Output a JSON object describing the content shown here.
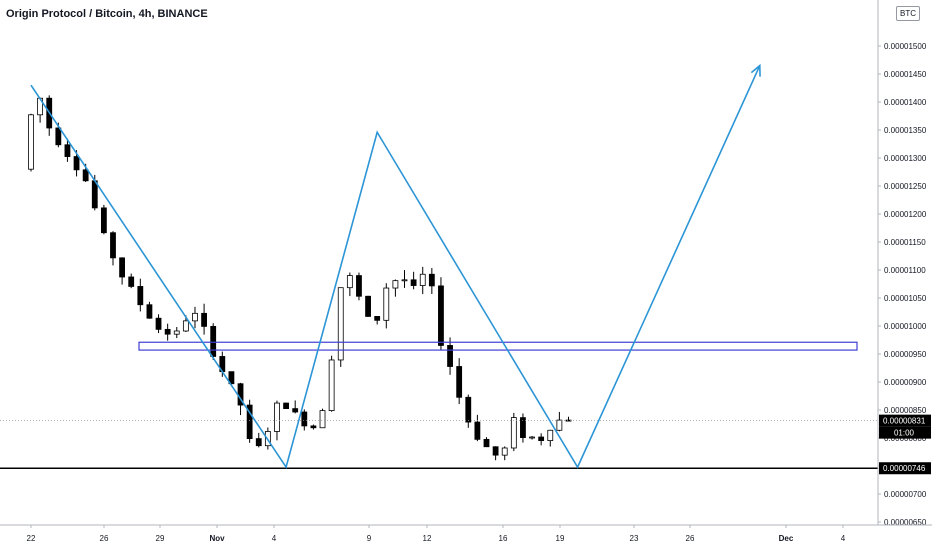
{
  "chart_data": {
    "type": "candlestick",
    "title": "Origin Protocol / Bitcoin, 4h, BINANCE",
    "currency": "BTC",
    "price_ticks": [
      "0.00001500",
      "0.00001450",
      "0.00001400",
      "0.00001350",
      "0.00001300",
      "0.00001250",
      "0.00001200",
      "0.00001150",
      "0.00001100",
      "0.00001050",
      "0.00001000",
      "0.00000950",
      "0.00000900",
      "0.00000850",
      "0.00000800",
      "0.00000750",
      "0.00000700",
      "0.00000650"
    ],
    "date_ticks": [
      "22",
      "26",
      "29",
      "Nov",
      "4",
      "9",
      "12",
      "16",
      "19",
      "23",
      "26",
      "Dec",
      "4"
    ],
    "ylim": [
      6.3e-06,
      1.575e-05
    ],
    "current_price": {
      "value": "0.00000831",
      "countdown": "01:00",
      "color": "#000000"
    },
    "support_level": {
      "value": "0.00000746",
      "color": "#000000"
    },
    "resistance_zone": {
      "from": 9.57e-06,
      "to": 9.71e-06,
      "color": "#3f3fd6"
    },
    "candle_colors": {
      "up": "#ffffff",
      "down": "#000000",
      "wick": "#000000"
    },
    "path_color": "#2b95d6",
    "zigzag": [
      {
        "date": "Oct 22",
        "price": 1.43e-05
      },
      {
        "date": "Nov 5",
        "price": 7.48e-06
      },
      {
        "date": "Nov 10",
        "price": 1.346e-05
      },
      {
        "date": "Nov 21",
        "price": 7.48e-06
      },
      {
        "date": "Dec 1",
        "price": 1.465e-05
      }
    ],
    "price_path": [
      {
        "day": 0,
        "price": 1.28e-05
      },
      {
        "day": 0.3,
        "price": 1.34e-05
      },
      {
        "day": 0.8,
        "price": 1.43e-05
      },
      {
        "day": 1.4,
        "price": 1.36e-05
      },
      {
        "day": 2.5,
        "price": 1.31e-05
      },
      {
        "day": 3.5,
        "price": 1.26e-05
      },
      {
        "day": 4.5,
        "price": 1.16e-05
      },
      {
        "day": 5.5,
        "price": 1.09e-05
      },
      {
        "day": 6.5,
        "price": 1.04e-05
      },
      {
        "day": 7.5,
        "price": 9.95e-06
      },
      {
        "day": 8.5,
        "price": 9.85e-06
      },
      {
        "day": 9.3,
        "price": 1.03e-05
      },
      {
        "day": 10.0,
        "price": 9.9e-06
      },
      {
        "day": 11.0,
        "price": 9.2e-06
      },
      {
        "day": 12.0,
        "price": 8.6e-06
      },
      {
        "day": 12.7,
        "price": 7.65e-06
      },
      {
        "day": 13.3,
        "price": 8e-06
      },
      {
        "day": 14.2,
        "price": 8.7e-06
      },
      {
        "day": 15.0,
        "price": 8.4e-06
      },
      {
        "day": 16.0,
        "price": 8.2e-06
      },
      {
        "day": 16.8,
        "price": 8.8e-06
      },
      {
        "day": 17.3,
        "price": 1.05e-05
      },
      {
        "day": 17.8,
        "price": 1.1e-05
      },
      {
        "day": 18.5,
        "price": 1.05e-05
      },
      {
        "day": 19.3,
        "price": 9.9e-06
      },
      {
        "day": 20.0,
        "price": 1.07e-05
      },
      {
        "day": 20.8,
        "price": 1.09e-05
      },
      {
        "day": 21.6,
        "price": 1.06e-05
      },
      {
        "day": 22.3,
        "price": 1.11e-05
      },
      {
        "day": 22.8,
        "price": 9.9e-06
      },
      {
        "day": 23.5,
        "price": 9.3e-06
      },
      {
        "day": 24.3,
        "price": 8.4e-06
      },
      {
        "day": 25.3,
        "price": 7.9e-06
      },
      {
        "day": 26.3,
        "price": 7.6e-06
      },
      {
        "day": 27.0,
        "price": 8.3e-06
      },
      {
        "day": 27.7,
        "price": 8e-06
      },
      {
        "day": 28.5,
        "price": 8e-06
      },
      {
        "day": 29.2,
        "price": 8.3e-06
      },
      {
        "day": 29.4,
        "price": 9e-06
      },
      {
        "day": 29.5,
        "price": 8.31e-06
      }
    ],
    "xlabel": "",
    "ylabel": ""
  }
}
